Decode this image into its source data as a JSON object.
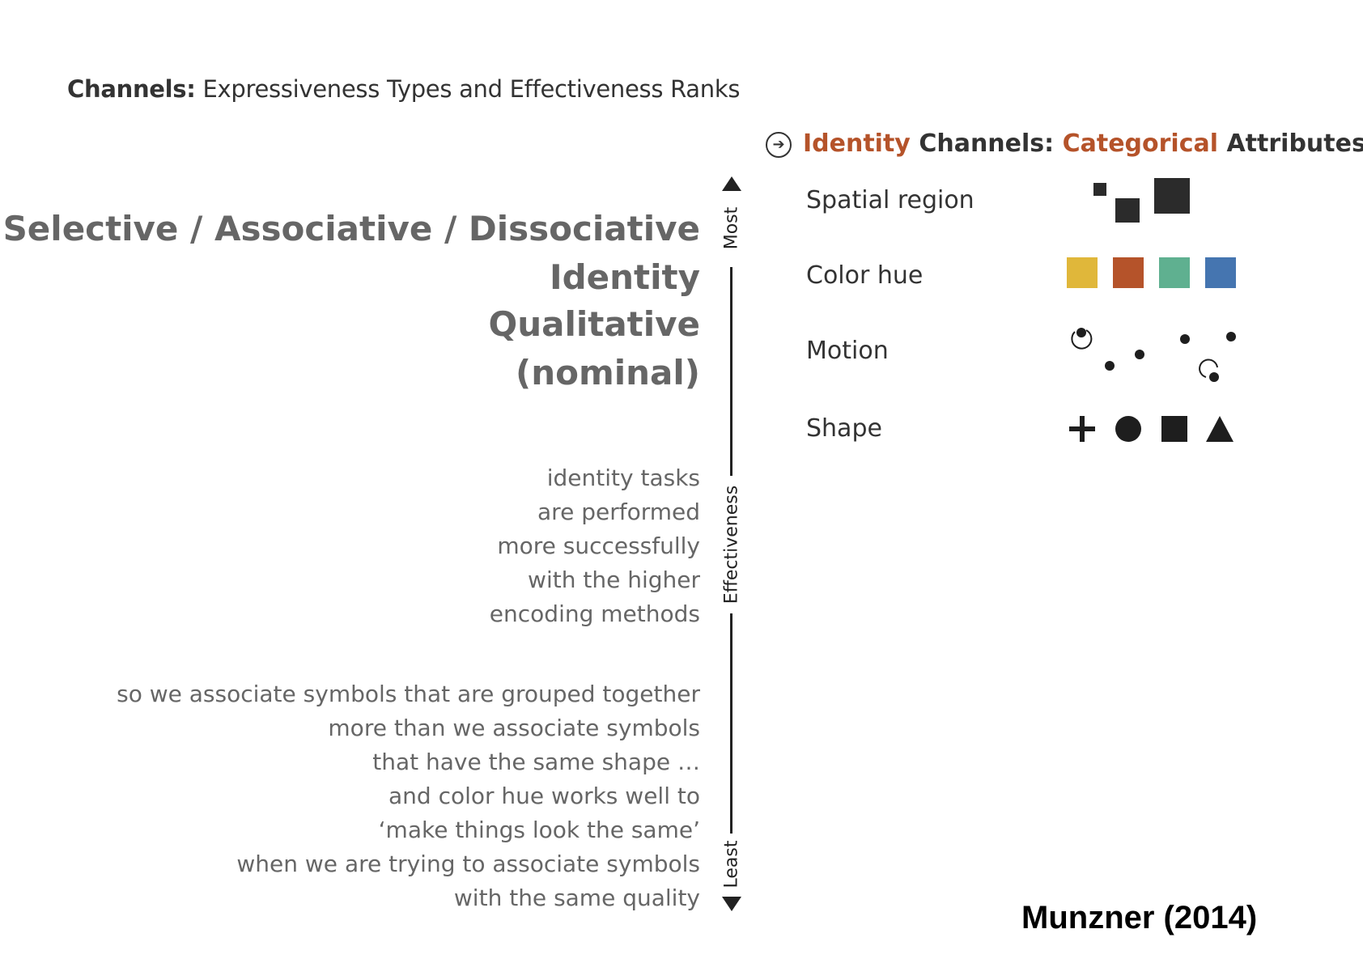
{
  "title": {
    "bold": "Channels:",
    "rest": " Expressiveness Types and Effectiveness Ranks"
  },
  "left_headline": {
    "line1": "Selective  /  Associative / Dissociative",
    "line2": "Identity",
    "line3": "Qualitative",
    "line4": "(nominal)"
  },
  "paragraph1": [
    "identity tasks",
    "are performed",
    "more successfully",
    "with the higher",
    "encoding methods"
  ],
  "paragraph2": [
    "so we associate symbols that are grouped together",
    "more than we associate symbols",
    "that have the same shape …",
    "and color hue works well to",
    "‘make things look the same’",
    "when we are trying to associate symbols",
    "with the same quality"
  ],
  "axis": {
    "top_label": "Most",
    "middle_label": "Effectiveness",
    "bottom_label": "Least"
  },
  "panel": {
    "header_accent_1": "Identity",
    "header_mid": " Channels: ",
    "header_accent_2": "Categorical",
    "header_end": " Attributes",
    "rows": [
      "Spatial region",
      "Color hue",
      "Motion",
      "Shape"
    ]
  },
  "colors": {
    "accent": "#b5532a",
    "hues": [
      "#e0b73a",
      "#b5532a",
      "#5fb090",
      "#4575b0"
    ]
  },
  "credit": "Munzner (2014)"
}
